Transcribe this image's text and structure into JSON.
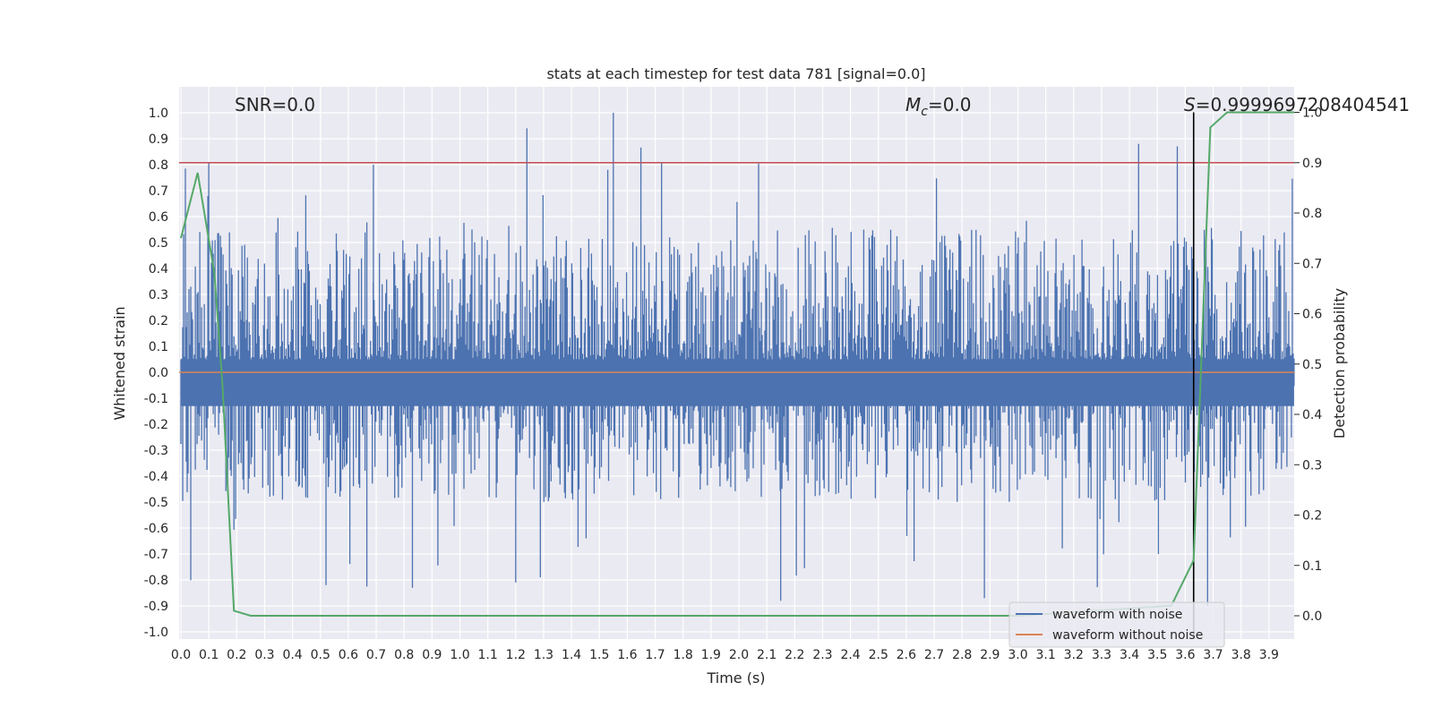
{
  "chart_data": {
    "type": "line",
    "title": "stats at each timestep for test data 781 [signal=0.0]",
    "xlabel": "Time (s)",
    "ylabel": "Whitened strain",
    "y2label": "Detection probability",
    "xlim": [
      0.0,
      4.0
    ],
    "ylim": [
      -1.05,
      1.1
    ],
    "y2lim": [
      -0.05,
      1.05
    ],
    "grid": true,
    "x_ticks": [
      "0.0",
      "0.1",
      "0.2",
      "0.3",
      "0.4",
      "0.5",
      "0.6",
      "0.7",
      "0.8",
      "0.9",
      "1.0",
      "1.1",
      "1.2",
      "1.3",
      "1.4",
      "1.5",
      "1.6",
      "1.7",
      "1.8",
      "1.9",
      "2.0",
      "2.1",
      "2.2",
      "2.3",
      "2.4",
      "2.5",
      "2.6",
      "2.7",
      "2.8",
      "2.9",
      "3.0",
      "3.1",
      "3.2",
      "3.3",
      "3.4",
      "3.5",
      "3.6",
      "3.7",
      "3.8",
      "3.9"
    ],
    "y_ticks": [
      "1.0",
      "0.9",
      "0.8",
      "0.7",
      "0.6",
      "0.5",
      "0.4",
      "0.3",
      "0.2",
      "0.1",
      "0.0",
      "-0.1",
      "-0.2",
      "-0.3",
      "-0.4",
      "-0.5",
      "-0.6",
      "-0.7",
      "-0.8",
      "-0.9",
      "-1.0"
    ],
    "y2_ticks": [
      "1.0",
      "0.9",
      "0.8",
      "0.7",
      "0.6",
      "0.5",
      "0.4",
      "0.3",
      "0.2",
      "0.1",
      "0.0"
    ],
    "annotations": {
      "snr": "SNR=0.0",
      "mc_symbol": "M",
      "mc_sub": "c",
      "mc_value": "=0.0",
      "s_symbol": "S",
      "s_value": "=0.9999697208404541"
    },
    "threshold_y2": 0.9,
    "marker_time": 3.63,
    "series": [
      {
        "name": "waveform with noise",
        "color": "#4c72b0",
        "envelope_upper": 0.5,
        "envelope_lower": -0.45,
        "peak_max": 1.0,
        "peak_min": -0.88
      },
      {
        "name": "waveform without noise",
        "color": "#dd8452",
        "value": 0.0
      },
      {
        "name": "detection probability",
        "color": "#55a868",
        "axis": "right",
        "x": [
          0.0,
          0.06,
          0.12,
          0.15,
          0.19,
          0.25,
          0.5,
          1.0,
          2.0,
          3.0,
          3.55,
          3.63,
          3.69,
          3.75,
          3.9,
          3.99
        ],
        "y": [
          0.75,
          0.88,
          0.68,
          0.45,
          0.01,
          0.0,
          0.0,
          0.0,
          0.0,
          0.0,
          0.02,
          0.11,
          0.97,
          1.0,
          1.0,
          1.0
        ]
      }
    ],
    "legend": {
      "position": "lower-right",
      "entries": [
        {
          "label": "waveform with noise",
          "color": "#4c72b0"
        },
        {
          "label": "waveform without noise",
          "color": "#dd8452"
        }
      ]
    }
  }
}
